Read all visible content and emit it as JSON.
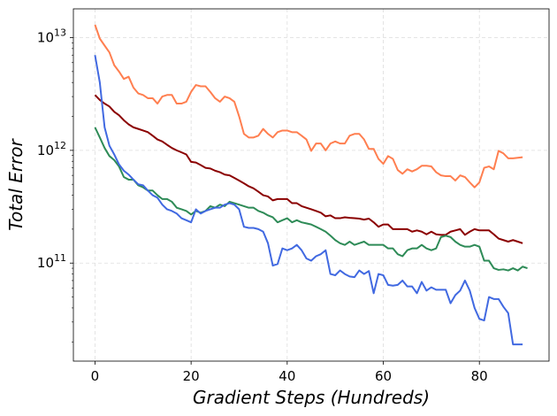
{
  "chart_data": {
    "type": "line",
    "title": "",
    "xlabel": "Gradient Steps (Hundreds)",
    "ylabel": "Total Error",
    "xlim": [
      -4.5,
      94.5
    ],
    "ylim": [
      13500000000,
      18000000000000
    ],
    "yscale": "log",
    "grid": true,
    "legend": "none",
    "xticks": [
      0,
      20,
      40,
      60,
      80
    ],
    "yticks": [
      {
        "value": 10000000000000,
        "base": "10",
        "exp": "13"
      },
      {
        "value": 1000000000000,
        "base": "10",
        "exp": "12"
      },
      {
        "value": 100000000000,
        "base": "10",
        "exp": "11"
      }
    ],
    "x_step": 1,
    "series": [
      {
        "color": "#ff7f50",
        "values": [
          13000000000000,
          9800000000000,
          8500000000000,
          7400000000000,
          5700000000000,
          5000000000000,
          4300000000000,
          4500000000000,
          3600000000000,
          3200000000000,
          3100000000000,
          2900000000000,
          2900000000000,
          2600000000000,
          3000000000000,
          3100000000000,
          3100000000000,
          2600000000000,
          2600000000000,
          2700000000000,
          3300000000000,
          3800000000000,
          3700000000000,
          3700000000000,
          3300000000000,
          2900000000000,
          2700000000000,
          3000000000000,
          2900000000000,
          2700000000000,
          2000000000000,
          1400000000000,
          1300000000000,
          1300000000000,
          1350000000000,
          1550000000000,
          1400000000000,
          1300000000000,
          1450000000000,
          1500000000000,
          1500000000000,
          1450000000000,
          1450000000000,
          1350000000000,
          1250000000000,
          990000000000,
          1150000000000,
          1150000000000,
          1000000000000,
          1150000000000,
          1200000000000,
          1150000000000,
          1150000000000,
          1350000000000,
          1400000000000,
          1400000000000,
          1250000000000,
          1030000000000,
          1030000000000,
          840000000000,
          760000000000,
          890000000000,
          840000000000,
          670000000000,
          620000000000,
          680000000000,
          650000000000,
          680000000000,
          730000000000,
          730000000000,
          720000000000,
          640000000000,
          600000000000,
          590000000000,
          590000000000,
          540000000000,
          600000000000,
          580000000000,
          520000000000,
          470000000000,
          520000000000,
          700000000000,
          720000000000,
          680000000000,
          990000000000,
          940000000000,
          850000000000,
          850000000000,
          860000000000,
          870000000000
        ]
      },
      {
        "color": "#8b0000",
        "values": [
          3100000000000,
          2800000000000,
          2600000000000,
          2450000000000,
          2200000000000,
          2050000000000,
          1850000000000,
          1700000000000,
          1600000000000,
          1550000000000,
          1500000000000,
          1450000000000,
          1350000000000,
          1250000000000,
          1200000000000,
          1120000000000,
          1050000000000,
          1000000000000,
          960000000000,
          920000000000,
          790000000000,
          780000000000,
          740000000000,
          700000000000,
          690000000000,
          660000000000,
          640000000000,
          610000000000,
          600000000000,
          570000000000,
          540000000000,
          510000000000,
          480000000000,
          460000000000,
          430000000000,
          400000000000,
          390000000000,
          360000000000,
          370000000000,
          370000000000,
          370000000000,
          340000000000,
          340000000000,
          320000000000,
          310000000000,
          300000000000,
          290000000000,
          280000000000,
          260000000000,
          265000000000,
          250000000000,
          250000000000,
          255000000000,
          252000000000,
          250000000000,
          248000000000,
          243000000000,
          248000000000,
          230000000000,
          210000000000,
          220000000000,
          220000000000,
          200000000000,
          200000000000,
          200000000000,
          200000000000,
          190000000000,
          195000000000,
          190000000000,
          180000000000,
          190000000000,
          180000000000,
          178000000000,
          178000000000,
          190000000000,
          195000000000,
          200000000000,
          178000000000,
          190000000000,
          200000000000,
          195000000000,
          195000000000,
          195000000000,
          180000000000,
          165000000000,
          160000000000,
          155000000000,
          160000000000,
          155000000000,
          150000000000
        ]
      },
      {
        "color": "#2e8b57",
        "values": [
          1600000000000,
          1300000000000,
          1050000000000,
          890000000000,
          820000000000,
          720000000000,
          580000000000,
          550000000000,
          550000000000,
          490000000000,
          470000000000,
          440000000000,
          440000000000,
          400000000000,
          370000000000,
          370000000000,
          350000000000,
          310000000000,
          300000000000,
          290000000000,
          270000000000,
          290000000000,
          280000000000,
          290000000000,
          320000000000,
          310000000000,
          330000000000,
          320000000000,
          350000000000,
          340000000000,
          330000000000,
          320000000000,
          310000000000,
          310000000000,
          290000000000,
          280000000000,
          265000000000,
          255000000000,
          230000000000,
          240000000000,
          250000000000,
          230000000000,
          240000000000,
          230000000000,
          225000000000,
          220000000000,
          210000000000,
          200000000000,
          190000000000,
          175000000000,
          160000000000,
          150000000000,
          145000000000,
          155000000000,
          145000000000,
          150000000000,
          155000000000,
          145000000000,
          145000000000,
          145000000000,
          145000000000,
          135000000000,
          135000000000,
          120000000000,
          115000000000,
          130000000000,
          135000000000,
          135000000000,
          145000000000,
          135000000000,
          130000000000,
          135000000000,
          170000000000,
          175000000000,
          170000000000,
          155000000000,
          145000000000,
          140000000000,
          140000000000,
          145000000000,
          140000000000,
          105000000000,
          105000000000,
          90000000000,
          87000000000,
          88000000000,
          86000000000,
          90000000000,
          86000000000,
          93000000000,
          90000000000
        ]
      },
      {
        "color": "#4169e1",
        "values": [
          7000000000000,
          4000000000000,
          1600000000000,
          1100000000000,
          920000000000,
          750000000000,
          660000000000,
          610000000000,
          550000000000,
          500000000000,
          490000000000,
          440000000000,
          400000000000,
          380000000000,
          330000000000,
          300000000000,
          290000000000,
          275000000000,
          250000000000,
          240000000000,
          230000000000,
          300000000000,
          275000000000,
          290000000000,
          300000000000,
          310000000000,
          310000000000,
          330000000000,
          340000000000,
          330000000000,
          300000000000,
          210000000000,
          205000000000,
          205000000000,
          200000000000,
          190000000000,
          150000000000,
          95000000000,
          98000000000,
          135000000000,
          130000000000,
          135000000000,
          145000000000,
          130000000000,
          110000000000,
          105000000000,
          115000000000,
          120000000000,
          130000000000,
          80000000000,
          78000000000,
          86000000000,
          80000000000,
          76000000000,
          75000000000,
          86000000000,
          80000000000,
          85000000000,
          54000000000,
          80000000000,
          78000000000,
          64000000000,
          63000000000,
          64000000000,
          70000000000,
          62000000000,
          62000000000,
          54000000000,
          68000000000,
          57000000000,
          61000000000,
          58000000000,
          58000000000,
          58000000000,
          44000000000,
          52000000000,
          57000000000,
          70000000000,
          57000000000,
          40000000000,
          32000000000,
          31000000000,
          50000000000,
          48000000000,
          48000000000,
          41000000000,
          36000000000,
          19000000000,
          19000000000,
          19000000000
        ]
      }
    ]
  }
}
